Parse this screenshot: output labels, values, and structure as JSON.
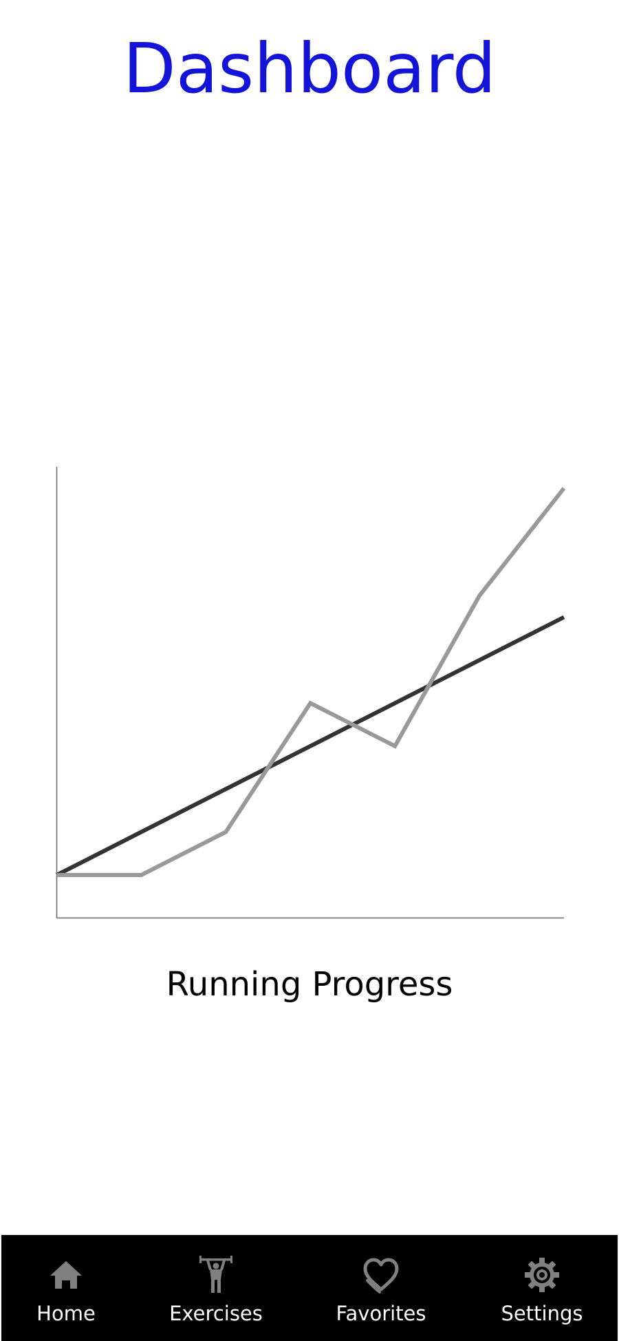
{
  "header": {
    "title": "Dashboard",
    "title_color": "#1414d8"
  },
  "chart_caption": "Running Progress",
  "chart_data": {
    "type": "line",
    "title": "",
    "xlabel": "",
    "ylabel": "",
    "x": [
      0,
      1,
      2,
      3,
      4,
      5,
      6
    ],
    "xlim": [
      0,
      6
    ],
    "ylim": [
      -1,
      20
    ],
    "grid": false,
    "legend": "none",
    "series": [
      {
        "color": "#333333",
        "values": [
          1,
          3,
          5,
          7,
          9,
          11,
          13
        ]
      },
      {
        "color": "#999999",
        "values": [
          1,
          1,
          3,
          9,
          7,
          14,
          19
        ]
      }
    ]
  },
  "nav": {
    "background": "#000000",
    "icon_color": "#808080",
    "items": [
      {
        "label": "Home",
        "icon": "home-icon"
      },
      {
        "label": "Exercises",
        "icon": "weightlifter-icon"
      },
      {
        "label": "Favorites",
        "icon": "heart-icon"
      },
      {
        "label": "Settings",
        "icon": "gear-icon"
      }
    ]
  }
}
